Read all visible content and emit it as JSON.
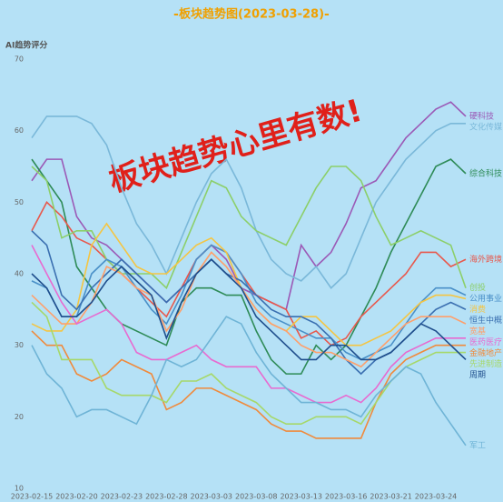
{
  "chart_data": {
    "type": "line",
    "title": "板块趋势图(2023-03-28)",
    "y_label": "AI趋势评分",
    "annotation": "板块趋势心里有数!",
    "categories": [
      "2023-02-15",
      null,
      null,
      "2023-02-20",
      null,
      null,
      "2023-02-23",
      null,
      null,
      "2023-02-28",
      null,
      null,
      "2023-03-03",
      null,
      null,
      "2023-03-08",
      null,
      null,
      "2023-03-13",
      null,
      null,
      "2023-03-16",
      null,
      null,
      "2023-03-21",
      null,
      null,
      "2023-03-24",
      null,
      null
    ],
    "ylim": [
      10,
      70
    ],
    "yticks": [
      10,
      20,
      30,
      40,
      50,
      60,
      70
    ],
    "grid": false,
    "series": [
      {
        "name": "硬科技",
        "color": "#9b59b6",
        "values": [
          53,
          56,
          56,
          48,
          45,
          44,
          42,
          40,
          38,
          36,
          38,
          42,
          44,
          42,
          38,
          37,
          36,
          35,
          44,
          41,
          43,
          47,
          52,
          53,
          56,
          59,
          61,
          63,
          64,
          62
        ]
      },
      {
        "name": "文化传媒",
        "color": "#7ab8d9",
        "values": [
          59,
          62,
          62,
          62,
          61,
          58,
          52,
          47,
          44,
          40,
          45,
          50,
          54,
          56,
          52,
          46,
          42,
          40,
          39,
          41,
          38,
          40,
          45,
          50,
          53,
          56,
          58,
          60,
          61,
          61
        ]
      },
      {
        "name": "综合科技",
        "color": "#2e8b57",
        "values": [
          56,
          53,
          50,
          41,
          38,
          35,
          33,
          32,
          31,
          30,
          36,
          38,
          38,
          37,
          37,
          32,
          28,
          26,
          26,
          30,
          28,
          30,
          34,
          38,
          43,
          47,
          51,
          55,
          56,
          54
        ]
      },
      {
        "name": "海外跨境",
        "color": "#e8584c",
        "values": [
          46,
          50,
          48,
          45,
          44,
          42,
          40,
          38,
          36,
          34,
          38,
          42,
          44,
          43,
          40,
          37,
          36,
          35,
          31,
          32,
          30,
          31,
          34,
          36,
          38,
          40,
          43,
          43,
          41,
          42
        ]
      },
      {
        "name": "创投",
        "color": "#8ccf6a",
        "values": [
          55,
          53,
          45,
          46,
          46,
          42,
          40,
          40,
          40,
          38,
          43,
          48,
          53,
          52,
          48,
          46,
          45,
          44,
          48,
          52,
          55,
          55,
          53,
          48,
          44,
          45,
          46,
          45,
          44,
          38
        ]
      },
      {
        "name": "公用事业",
        "color": "#4a90c8",
        "values": [
          39,
          38,
          34,
          34,
          40,
          42,
          41,
          38,
          35,
          33,
          37,
          42,
          44,
          43,
          40,
          36,
          34,
          33,
          32,
          31,
          31,
          29,
          28,
          29,
          30,
          33,
          36,
          38,
          38,
          37
        ]
      },
      {
        "name": "消费",
        "color": "#f5c542",
        "values": [
          33,
          32,
          32,
          35,
          44,
          47,
          44,
          41,
          40,
          40,
          42,
          44,
          45,
          43,
          38,
          35,
          33,
          32,
          34,
          34,
          32,
          30,
          30,
          31,
          32,
          34,
          36,
          37,
          37,
          36.5
        ]
      },
      {
        "name": "恒生中概",
        "color": "#3a6fb0",
        "values": [
          46,
          44,
          37,
          35,
          38,
          40,
          42,
          40,
          38,
          36,
          38,
          40,
          42,
          40,
          39,
          37,
          35,
          34,
          34,
          33,
          31,
          28,
          26,
          28,
          29,
          31,
          33,
          35,
          36,
          35
        ]
      },
      {
        "name": "宽基",
        "color": "#ff9f6b",
        "values": [
          37,
          35,
          33,
          33,
          36,
          41,
          40,
          38,
          37,
          32,
          35,
          40,
          43,
          41,
          38,
          35,
          33,
          32,
          30,
          29,
          29,
          28,
          27,
          29,
          31,
          33,
          34,
          34,
          34,
          33
        ]
      },
      {
        "name": "医药医疗",
        "color": "#e86ad0",
        "values": [
          44,
          40,
          36,
          33,
          34,
          35,
          33,
          29,
          28,
          28,
          29,
          30,
          28,
          27,
          27,
          27,
          24,
          24,
          23,
          22,
          22,
          23,
          22,
          24,
          27,
          29,
          30,
          31,
          31,
          31
        ]
      },
      {
        "name": "金融地产",
        "color": "#f08a3c",
        "values": [
          32,
          30,
          30,
          26,
          25,
          26,
          28,
          27,
          26,
          21,
          22,
          24,
          24,
          23,
          22,
          21,
          19,
          18,
          18,
          17,
          17,
          17,
          17,
          22,
          26,
          28,
          29,
          30,
          30,
          30
        ]
      },
      {
        "name": "先进制造",
        "color": "#a6d86a",
        "values": [
          36,
          34,
          28,
          28,
          28,
          24,
          23,
          23,
          23,
          22,
          25,
          25,
          26,
          24,
          23,
          22,
          20,
          19,
          19,
          20,
          20,
          20,
          19,
          22,
          25,
          27,
          28,
          29,
          29,
          29
        ]
      },
      {
        "name": "周期",
        "color": "#1f4e8c",
        "values": [
          40,
          38,
          34,
          34,
          36,
          39,
          41,
          39,
          37,
          31,
          36,
          40,
          42,
          40,
          38,
          34,
          32,
          30,
          28,
          28,
          30,
          30,
          28,
          28,
          29,
          31,
          33,
          32,
          30,
          28
        ]
      },
      {
        "name": "军工",
        "color": "#6fb4d6",
        "values": [
          30,
          26,
          24,
          20,
          21,
          21,
          20,
          19,
          23,
          28,
          27,
          28,
          31,
          34,
          33,
          29,
          26,
          24,
          22,
          22,
          21,
          21,
          20,
          23,
          25,
          27,
          26,
          22,
          19,
          16
        ]
      }
    ]
  }
}
